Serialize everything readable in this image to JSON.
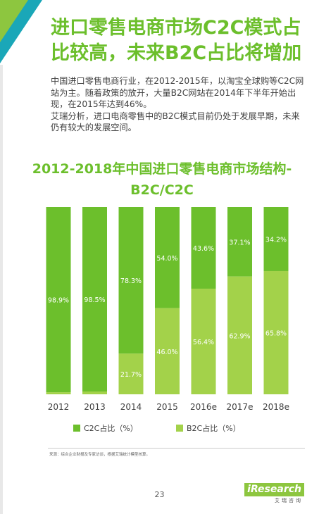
{
  "page": {
    "headline": "进口零售电商市场C2C模式占比较高，未来B2C占比将增加",
    "intro_paragraph_1": "中国进口零售电商行业，在2012-2015年，以淘宝全球购等C2C网站为主。随着政策的放开，大量B2C网站在2014年下半年开始出现，在2015年达到46%。",
    "intro_paragraph_2": "艾瑞分析，进口电商零售中的B2C模式目前仍处于发展早期，未来仍有较大的发展空间。",
    "source": "来源：综合企业财报及专家访谈，根据艾瑞统计模型核算。",
    "page_number": "23",
    "brand": "iResearch",
    "brand_sub": "艾瑞咨询",
    "colors": {
      "c2c": "#6cbf2c",
      "b2c": "#a3d24a",
      "headline": "#6cbf2c",
      "corner_teal": "#1aa7b8",
      "corner_green": "#8dc63f"
    }
  },
  "chart_data": {
    "type": "bar",
    "stacked": true,
    "title": "2012-2018年中国进口零售电商市场结构-B2C/C2C",
    "categories": [
      "2012",
      "2013",
      "2014",
      "2015",
      "2016e",
      "2017e",
      "2018e"
    ],
    "series": [
      {
        "name": "C2C占比（%）",
        "values": [
          98.9,
          98.5,
          78.3,
          54.0,
          43.6,
          37.1,
          34.2
        ],
        "labels": [
          "98.9%",
          "98.5%",
          "78.3%",
          "54.0%",
          "43.6%",
          "37.1%",
          "34.2%"
        ]
      },
      {
        "name": "B2C占比（%）",
        "values": [
          1.1,
          1.5,
          21.7,
          46.0,
          56.4,
          62.9,
          65.8
        ],
        "labels": [
          "",
          "",
          "21.7%",
          "46.0%",
          "56.4%",
          "62.9%",
          "65.8%"
        ]
      }
    ],
    "ylim": [
      0,
      100
    ],
    "grid": false,
    "legend_position": "bottom"
  }
}
